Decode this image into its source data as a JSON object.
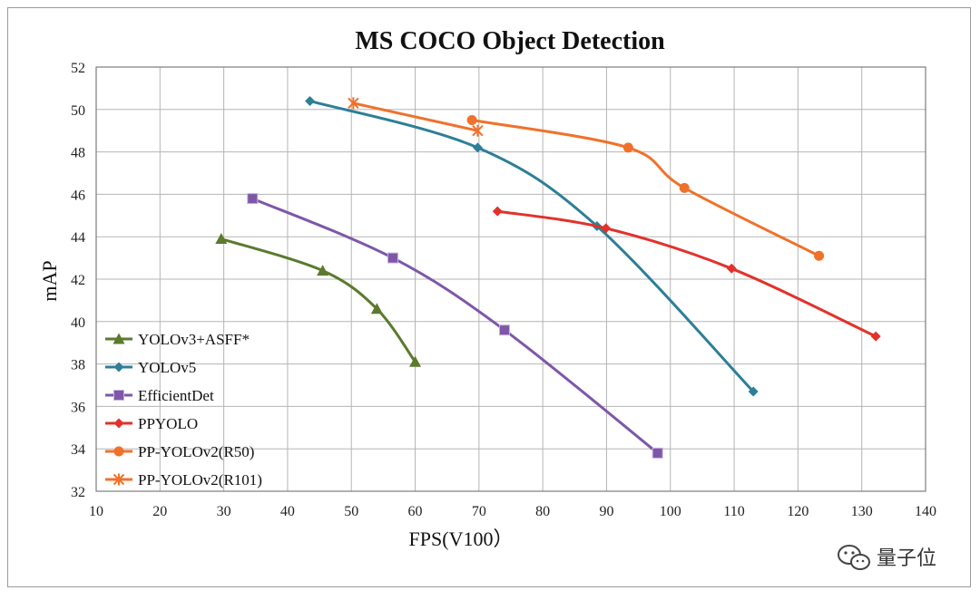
{
  "chart_data": {
    "type": "line",
    "title": "MS COCO Object Detection",
    "xlabel": "FPS(V100）",
    "ylabel": "mAP",
    "xlim": [
      10,
      140
    ],
    "ylim": [
      32,
      52
    ],
    "xticks": [
      10,
      20,
      30,
      40,
      50,
      60,
      70,
      80,
      90,
      100,
      110,
      120,
      130,
      140
    ],
    "yticks": [
      32,
      34,
      36,
      38,
      40,
      42,
      44,
      46,
      48,
      50,
      52
    ],
    "grid": true,
    "legend_position": "bottom-left",
    "series": [
      {
        "name": "YOLOv3+ASFF*",
        "color": "#5b7a2e",
        "marker": "triangle",
        "x": [
          29.6,
          45.5,
          54,
          60
        ],
        "y": [
          43.9,
          42.4,
          40.6,
          38.1
        ]
      },
      {
        "name": "YOLOv5",
        "color": "#2d7f97",
        "marker": "diamond",
        "x": [
          43.5,
          69.8,
          88.5,
          113
        ],
        "y": [
          50.4,
          48.2,
          44.5,
          36.7
        ]
      },
      {
        "name": "EfficientDet",
        "color": "#7e57a8",
        "marker": "square",
        "x": [
          34.5,
          56.5,
          74,
          98
        ],
        "y": [
          45.8,
          43.0,
          39.6,
          33.8
        ]
      },
      {
        "name": "PPYOLO",
        "color": "#e2322b",
        "marker": "diamond",
        "x": [
          72.9,
          89.9,
          109.6,
          132.2
        ],
        "y": [
          45.2,
          44.4,
          42.5,
          39.3
        ]
      },
      {
        "name": "PP-YOLOv2(R50)",
        "color": "#f0712a",
        "marker": "circle",
        "x": [
          68.9,
          93.4,
          102.2,
          123.3
        ],
        "y": [
          49.5,
          48.2,
          46.3,
          43.1
        ]
      },
      {
        "name": "PP-YOLOv2(R101)",
        "color": "#f0712a",
        "marker": "star",
        "x": [
          50.3,
          69.8
        ],
        "y": [
          50.3,
          49.0
        ]
      }
    ]
  },
  "watermark": {
    "text": "量子位",
    "icon": "wechat-icon"
  }
}
